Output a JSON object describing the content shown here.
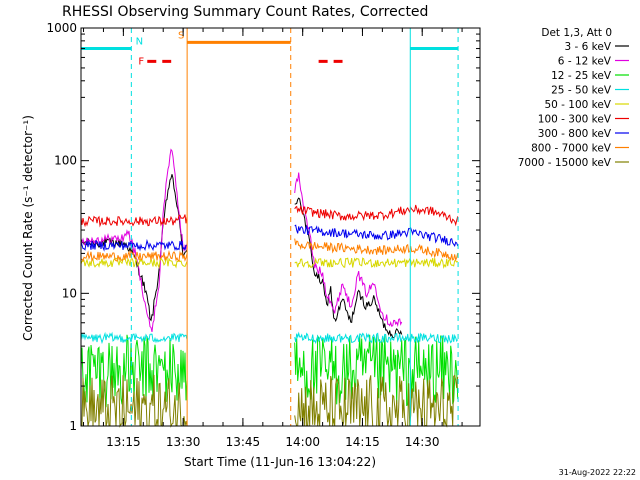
{
  "chart_data": {
    "type": "line",
    "title": "RHESSI Observing Summary Count Rates, Corrected",
    "xlabel": "Start Time (11-Jun-16 13:04:22)",
    "ylabel": "Corrected Count Rate (s⁻¹ detector⁻¹)",
    "yscale": "log",
    "ylim": [
      1,
      1000
    ],
    "xlim": [
      "13:04:22",
      "14:44:30"
    ],
    "y_ticks": [
      "1",
      "10",
      "100",
      "1000"
    ],
    "x_ticks": [
      "13:15",
      "13:30",
      "13:45",
      "14:00",
      "14:15",
      "14:30"
    ],
    "legend_title": "Det 1,3, Att 0",
    "legend_placement": "right",
    "series": [
      {
        "name": "3 - 6 keV",
        "color": "#000000",
        "segments": [
          {
            "t": [
              "13:04:22",
              "13:15",
              "13:16",
              "13:18",
              "13:20",
              "13:21",
              "13:22",
              "13:24",
              "13:25",
              "13:26",
              "13:27",
              "13:28",
              "13:29",
              "13:30",
              "13:31"
            ],
            "v": [
              24,
              24,
              23,
              18,
              12,
              9,
              6,
              15,
              32,
              55,
              78,
              58,
              35,
              20,
              20
            ]
          },
          {
            "t": [
              "13:58",
              "13:59",
              "14:00",
              "14:02",
              "14:03",
              "14:05",
              "14:06",
              "14:07",
              "14:08",
              "14:10",
              "14:12",
              "14:14",
              "14:16",
              "14:18",
              "14:20",
              "14:22",
              "14:25"
            ],
            "v": [
              45,
              55,
              42,
              22,
              14,
              12,
              8,
              11,
              6,
              9,
              6,
              10,
              8,
              9,
              6,
              5,
              5
            ]
          }
        ]
      },
      {
        "name": "6 - 12 keV",
        "color": "#e000e0",
        "segments": [
          {
            "t": [
              "13:04:22",
              "13:15",
              "13:16",
              "13:18",
              "13:20",
              "13:21",
              "13:22",
              "13:24",
              "13:25",
              "13:26",
              "13:27",
              "13:28",
              "13:29",
              "13:30",
              "13:31"
            ],
            "v": [
              25,
              26,
              30,
              20,
              10,
              7,
              5,
              12,
              40,
              80,
              125,
              75,
              40,
              22,
              22
            ]
          },
          {
            "t": [
              "13:58",
              "13:59",
              "14:00",
              "14:02",
              "14:03",
              "14:05",
              "14:06",
              "14:07",
              "14:08",
              "14:10",
              "14:12",
              "14:14",
              "14:16",
              "14:18",
              "14:20",
              "14:22",
              "14:25"
            ],
            "v": [
              60,
              80,
              50,
              25,
              16,
              14,
              10,
              9,
              7,
              12,
              8,
              14,
              10,
              12,
              7,
              6,
              6
            ]
          }
        ]
      },
      {
        "name": "12 - 25 keV",
        "color": "#00e000",
        "segments": [
          {
            "t": [
              "13:04:22",
              "13:31"
            ],
            "v": [
              2.6,
              2.6
            ]
          },
          {
            "t": [
              "13:58",
              "14:39"
            ],
            "v": [
              2.6,
              2.6
            ]
          }
        ]
      },
      {
        "name": "25 - 50 keV",
        "color": "#00e0e0",
        "segments": [
          {
            "t": [
              "13:04:22",
              "13:31"
            ],
            "v": [
              4.6,
              4.6
            ]
          },
          {
            "t": [
              "13:58",
              "14:39"
            ],
            "v": [
              4.6,
              4.6
            ]
          }
        ]
      },
      {
        "name": "50 - 100 keV",
        "color": "#d8d800",
        "segments": [
          {
            "t": [
              "13:04:22",
              "13:31"
            ],
            "v": [
              17,
              17
            ]
          },
          {
            "t": [
              "13:58",
              "14:39"
            ],
            "v": [
              17,
              17
            ]
          }
        ]
      },
      {
        "name": "100 - 300 keV",
        "color": "#ee0000",
        "segments": [
          {
            "t": [
              "13:04:22",
              "13:28",
              "13:30",
              "13:31"
            ],
            "v": [
              35,
              35,
              37,
              36
            ]
          },
          {
            "t": [
              "13:58",
              "14:00",
              "14:10",
              "14:20",
              "14:27",
              "14:32",
              "14:36",
              "14:39"
            ],
            "v": [
              43,
              42,
              38,
              39,
              43,
              42,
              38,
              35
            ]
          }
        ]
      },
      {
        "name": "300 - 800 keV",
        "color": "#0000ee",
        "segments": [
          {
            "t": [
              "13:04:22",
              "13:31"
            ],
            "v": [
              23,
              23
            ]
          },
          {
            "t": [
              "13:58",
              "14:00",
              "14:20",
              "14:27",
              "14:39"
            ],
            "v": [
              31,
              30,
              27,
              29,
              24
            ]
          }
        ]
      },
      {
        "name": "800 - 7000 keV",
        "color": "#ff8000",
        "segments": [
          {
            "t": [
              "13:04:22",
              "13:31"
            ],
            "v": [
              19,
              19
            ]
          },
          {
            "t": [
              "13:58",
              "14:00",
              "14:20",
              "14:27",
              "14:39"
            ],
            "v": [
              24,
              23,
              21,
              22,
              19
            ]
          }
        ]
      },
      {
        "name": "7000 - 15000 keV",
        "color": "#808000",
        "segments": [
          {
            "t": [
              "13:04:22",
              "13:31"
            ],
            "v": [
              1.3,
              1.3
            ]
          },
          {
            "t": [
              "13:58",
              "14:39"
            ],
            "v": [
              1.3,
              1.3
            ]
          }
        ]
      }
    ],
    "annotations": [
      {
        "label": "N",
        "color": "#00e0e0",
        "bars": [
          [
            "13:04:22",
            "13:17"
          ],
          [
            "14:27",
            "14:39"
          ]
        ],
        "level": 700
      },
      {
        "label": "S",
        "color": "#ff8000",
        "bars": [
          [
            "13:31",
            "13:57"
          ]
        ],
        "level": 780
      },
      {
        "label": "F",
        "color": "#ee0000",
        "bars": [
          [
            "13:21",
            "13:27"
          ],
          [
            "14:04",
            "14:10"
          ]
        ],
        "level": 560
      }
    ],
    "vlines": [
      {
        "t": "13:17",
        "color": "#00e0e0",
        "style": "dashed"
      },
      {
        "t": "13:31",
        "color": "#ff8000",
        "style": "solid"
      },
      {
        "t": "13:57",
        "color": "#ff8000",
        "style": "dashed"
      },
      {
        "t": "14:27",
        "color": "#00e0e0",
        "style": "solid"
      },
      {
        "t": "14:39",
        "color": "#00e0e0",
        "style": "dashed"
      }
    ],
    "footer_date": "31-Aug-2022 22:22"
  }
}
